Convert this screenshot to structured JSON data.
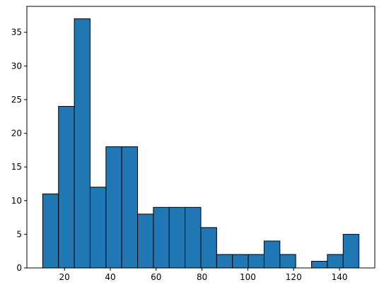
{
  "chart_data": {
    "type": "bar",
    "title": "",
    "xlabel": "",
    "ylabel": "",
    "bins": [
      [
        10.5,
        17.4,
        11
      ],
      [
        17.4,
        24.3,
        24
      ],
      [
        24.3,
        31.2,
        37
      ],
      [
        31.2,
        38.1,
        12
      ],
      [
        38.1,
        45.0,
        18
      ],
      [
        45.0,
        51.9,
        18
      ],
      [
        51.9,
        58.8,
        8
      ],
      [
        58.8,
        65.7,
        9
      ],
      [
        65.7,
        72.6,
        9
      ],
      [
        72.6,
        79.5,
        9
      ],
      [
        79.5,
        86.4,
        6
      ],
      [
        86.4,
        93.3,
        2
      ],
      [
        93.3,
        100.2,
        2
      ],
      [
        100.2,
        107.1,
        2
      ],
      [
        107.1,
        114.0,
        4
      ],
      [
        114.0,
        120.9,
        2
      ],
      [
        120.9,
        127.8,
        0
      ],
      [
        127.8,
        134.7,
        1
      ],
      [
        134.7,
        141.6,
        2
      ],
      [
        141.6,
        148.5,
        5
      ]
    ],
    "xlim": [
      3.6,
      155.4
    ],
    "ylim": [
      0,
      38.85
    ],
    "xticks": [
      20,
      40,
      60,
      80,
      100,
      120,
      140
    ],
    "xtick_labels": [
      "20",
      "40",
      "60",
      "80",
      "100",
      "120",
      "140"
    ],
    "yticks": [
      0,
      5,
      10,
      15,
      20,
      25,
      30,
      35
    ],
    "ytick_labels": [
      "0",
      "5",
      "10",
      "15",
      "20",
      "25",
      "30",
      "35"
    ],
    "grid": false,
    "colors": {
      "bar_fill": "#1f77b4",
      "bar_edge": "#000000"
    }
  }
}
